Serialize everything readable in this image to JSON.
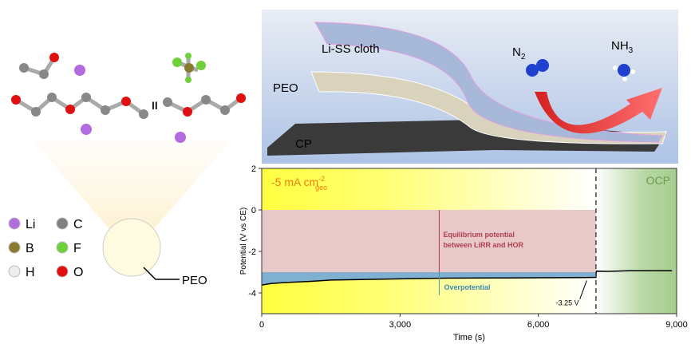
{
  "molecule_panel": {
    "break_mark": "II",
    "peo_label": "PEO",
    "legend": [
      {
        "symbol": "Li",
        "color": "#b36be0"
      },
      {
        "symbol": "C",
        "color": "#808080"
      },
      {
        "symbol": "B",
        "color": "#8a7a30"
      },
      {
        "symbol": "F",
        "color": "#6ed13a"
      },
      {
        "symbol": "H",
        "color": "#eeeeee"
      },
      {
        "symbol": "O",
        "color": "#e01010"
      }
    ]
  },
  "schematic": {
    "li_ss_label": "Li-SS cloth",
    "peo_label": "PEO",
    "cp_label": "CP",
    "n2_label": "N",
    "n2_sub": "2",
    "nh3_label": "NH",
    "nh3_sub": "3"
  },
  "chart_data": {
    "type": "line",
    "xlabel": "Time  (s)",
    "ylabel": "Potential  (V vs CE)",
    "xlim": [
      0,
      9000
    ],
    "ylim": [
      -5,
      2
    ],
    "xticks": [
      "0",
      "3,000",
      "6,000",
      "9,000"
    ],
    "xtick_values": [
      0,
      3000,
      6000,
      9000
    ],
    "yticks": [
      "2",
      "0",
      "-2",
      "-4"
    ],
    "ytick_values": [
      2,
      0,
      -2,
      -4
    ],
    "current_label": "-5 mA cm",
    "current_sup": "-2",
    "current_sub": "geo",
    "ocp_label": "OCP",
    "switch_time": 7250,
    "equilibrium_band": [
      -3.0,
      0
    ],
    "equilibrium_label_1": "Equilibrium potential",
    "equilibrium_label_2": "between LiRR and HOR",
    "overpotential_label": "Overpotential",
    "final_value_label": "-3.25 V",
    "colors": {
      "equilibrium": "#e8c8c8",
      "overpotential": "#7fb0d0",
      "ocp": "#a9cf90",
      "galvano": "#ffff50",
      "line": "#000000"
    },
    "series": [
      {
        "x": [
          0,
          200,
          500,
          1000,
          1500,
          2000,
          3000,
          4000,
          5000,
          6000,
          7000,
          7250,
          7260,
          7500,
          8000,
          8500,
          8900
        ],
        "y": [
          -3.62,
          -3.55,
          -3.5,
          -3.45,
          -3.38,
          -3.36,
          -3.32,
          -3.29,
          -3.28,
          -3.27,
          -3.26,
          -3.25,
          -2.95,
          -2.96,
          -2.93,
          -2.93,
          -2.93
        ]
      }
    ]
  }
}
